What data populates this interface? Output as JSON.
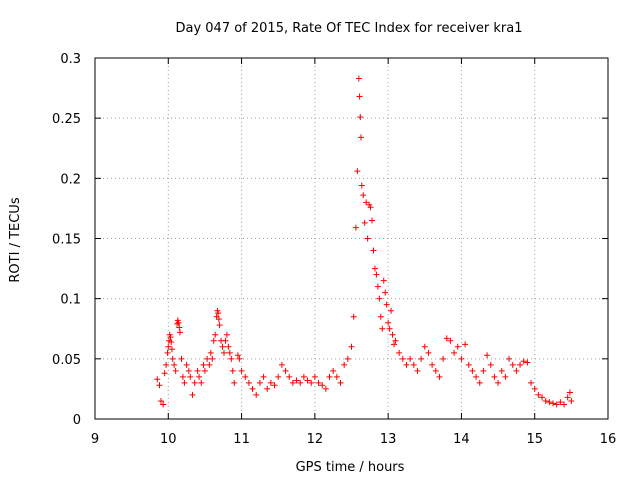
{
  "chart_data": {
    "type": "scatter",
    "title": "Day 047 of 2015, Rate Of TEC Index for receiver kra1",
    "xlabel": "GPS time / hours",
    "ylabel": "ROTI / TECUs",
    "xlim": [
      9,
      16
    ],
    "ylim": [
      0,
      0.3
    ],
    "xticks": [
      9,
      10,
      11,
      12,
      13,
      14,
      15,
      16
    ],
    "yticks": [
      0,
      0.05,
      0.1,
      0.15,
      0.2,
      0.25,
      0.3
    ],
    "xtick_labels": [
      "9",
      "10",
      "11",
      "12",
      "13",
      "14",
      "15",
      "16"
    ],
    "ytick_labels": [
      "0",
      "0.05",
      "0.1",
      "0.15",
      "0.2",
      "0.25",
      "0.3"
    ],
    "grid": true,
    "marker": "+",
    "color": "#ff0000",
    "series": [
      {
        "name": "ROTI",
        "points": [
          [
            9.85,
            0.033
          ],
          [
            9.88,
            0.028
          ],
          [
            9.9,
            0.015
          ],
          [
            9.93,
            0.012
          ],
          [
            9.95,
            0.038
          ],
          [
            9.97,
            0.045
          ],
          [
            9.99,
            0.055
          ],
          [
            10.0,
            0.06
          ],
          [
            10.01,
            0.065
          ],
          [
            10.02,
            0.07
          ],
          [
            10.03,
            0.068
          ],
          [
            10.04,
            0.064
          ],
          [
            10.05,
            0.058
          ],
          [
            10.06,
            0.05
          ],
          [
            10.08,
            0.045
          ],
          [
            10.1,
            0.04
          ],
          [
            10.12,
            0.079
          ],
          [
            10.13,
            0.082
          ],
          [
            10.14,
            0.08
          ],
          [
            10.15,
            0.076
          ],
          [
            10.16,
            0.072
          ],
          [
            10.18,
            0.05
          ],
          [
            10.2,
            0.035
          ],
          [
            10.22,
            0.03
          ],
          [
            10.25,
            0.045
          ],
          [
            10.28,
            0.04
          ],
          [
            10.3,
            0.035
          ],
          [
            10.33,
            0.02
          ],
          [
            10.36,
            0.03
          ],
          [
            10.4,
            0.04
          ],
          [
            10.42,
            0.035
          ],
          [
            10.45,
            0.03
          ],
          [
            10.48,
            0.045
          ],
          [
            10.5,
            0.04
          ],
          [
            10.53,
            0.05
          ],
          [
            10.56,
            0.045
          ],
          [
            10.58,
            0.055
          ],
          [
            10.6,
            0.05
          ],
          [
            10.62,
            0.065
          ],
          [
            10.64,
            0.07
          ],
          [
            10.66,
            0.085
          ],
          [
            10.67,
            0.09
          ],
          [
            10.68,
            0.088
          ],
          [
            10.69,
            0.083
          ],
          [
            10.7,
            0.078
          ],
          [
            10.72,
            0.065
          ],
          [
            10.74,
            0.06
          ],
          [
            10.76,
            0.055
          ],
          [
            10.78,
            0.065
          ],
          [
            10.8,
            0.07
          ],
          [
            10.82,
            0.06
          ],
          [
            10.84,
            0.055
          ],
          [
            10.86,
            0.05
          ],
          [
            10.88,
            0.04
          ],
          [
            10.9,
            0.03
          ],
          [
            10.95,
            0.053
          ],
          [
            10.97,
            0.05
          ],
          [
            11.0,
            0.04
          ],
          [
            11.05,
            0.035
          ],
          [
            11.1,
            0.03
          ],
          [
            11.15,
            0.025
          ],
          [
            11.2,
            0.02
          ],
          [
            11.25,
            0.03
          ],
          [
            11.3,
            0.035
          ],
          [
            11.35,
            0.025
          ],
          [
            11.4,
            0.03
          ],
          [
            11.45,
            0.028
          ],
          [
            11.5,
            0.035
          ],
          [
            11.55,
            0.045
          ],
          [
            11.6,
            0.04
          ],
          [
            11.65,
            0.035
          ],
          [
            11.7,
            0.03
          ],
          [
            11.75,
            0.032
          ],
          [
            11.8,
            0.03
          ],
          [
            11.85,
            0.035
          ],
          [
            11.9,
            0.032
          ],
          [
            11.95,
            0.03
          ],
          [
            12.0,
            0.035
          ],
          [
            12.05,
            0.03
          ],
          [
            12.1,
            0.028
          ],
          [
            12.15,
            0.025
          ],
          [
            12.2,
            0.035
          ],
          [
            12.25,
            0.04
          ],
          [
            12.3,
            0.035
          ],
          [
            12.35,
            0.03
          ],
          [
            12.4,
            0.045
          ],
          [
            12.45,
            0.05
          ],
          [
            12.5,
            0.06
          ],
          [
            12.53,
            0.085
          ],
          [
            12.56,
            0.159
          ],
          [
            12.58,
            0.206
          ],
          [
            12.6,
            0.283
          ],
          [
            12.61,
            0.268
          ],
          [
            12.62,
            0.251
          ],
          [
            12.63,
            0.234
          ],
          [
            12.64,
            0.194
          ],
          [
            12.66,
            0.186
          ],
          [
            12.68,
            0.163
          ],
          [
            12.7,
            0.18
          ],
          [
            12.72,
            0.15
          ],
          [
            12.74,
            0.178
          ],
          [
            12.76,
            0.176
          ],
          [
            12.78,
            0.165
          ],
          [
            12.8,
            0.14
          ],
          [
            12.82,
            0.125
          ],
          [
            12.84,
            0.12
          ],
          [
            12.86,
            0.11
          ],
          [
            12.88,
            0.1
          ],
          [
            12.9,
            0.085
          ],
          [
            12.92,
            0.075
          ],
          [
            12.94,
            0.115
          ],
          [
            12.96,
            0.105
          ],
          [
            12.98,
            0.095
          ],
          [
            13.0,
            0.08
          ],
          [
            13.02,
            0.075
          ],
          [
            13.04,
            0.09
          ],
          [
            13.06,
            0.07
          ],
          [
            13.08,
            0.062
          ],
          [
            13.1,
            0.065
          ],
          [
            13.15,
            0.055
          ],
          [
            13.2,
            0.05
          ],
          [
            13.25,
            0.045
          ],
          [
            13.3,
            0.05
          ],
          [
            13.35,
            0.045
          ],
          [
            13.4,
            0.04
          ],
          [
            13.45,
            0.05
          ],
          [
            13.5,
            0.06
          ],
          [
            13.55,
            0.055
          ],
          [
            13.6,
            0.045
          ],
          [
            13.65,
            0.04
          ],
          [
            13.7,
            0.035
          ],
          [
            13.75,
            0.05
          ],
          [
            13.8,
            0.067
          ],
          [
            13.85,
            0.065
          ],
          [
            13.9,
            0.055
          ],
          [
            13.95,
            0.06
          ],
          [
            14.0,
            0.05
          ],
          [
            14.05,
            0.062
          ],
          [
            14.1,
            0.045
          ],
          [
            14.15,
            0.04
          ],
          [
            14.2,
            0.035
          ],
          [
            14.25,
            0.03
          ],
          [
            14.3,
            0.04
          ],
          [
            14.35,
            0.053
          ],
          [
            14.4,
            0.045
          ],
          [
            14.45,
            0.035
          ],
          [
            14.5,
            0.03
          ],
          [
            14.55,
            0.04
          ],
          [
            14.6,
            0.035
          ],
          [
            14.65,
            0.05
          ],
          [
            14.7,
            0.045
          ],
          [
            14.75,
            0.04
          ],
          [
            14.8,
            0.045
          ],
          [
            14.85,
            0.048
          ],
          [
            14.9,
            0.047
          ],
          [
            14.95,
            0.03
          ],
          [
            15.0,
            0.025
          ],
          [
            15.05,
            0.02
          ],
          [
            15.1,
            0.018
          ],
          [
            15.15,
            0.015
          ],
          [
            15.2,
            0.014
          ],
          [
            15.25,
            0.013
          ],
          [
            15.3,
            0.012
          ],
          [
            15.35,
            0.014
          ],
          [
            15.4,
            0.012
          ],
          [
            15.45,
            0.018
          ],
          [
            15.48,
            0.022
          ],
          [
            15.5,
            0.015
          ]
        ]
      }
    ]
  }
}
